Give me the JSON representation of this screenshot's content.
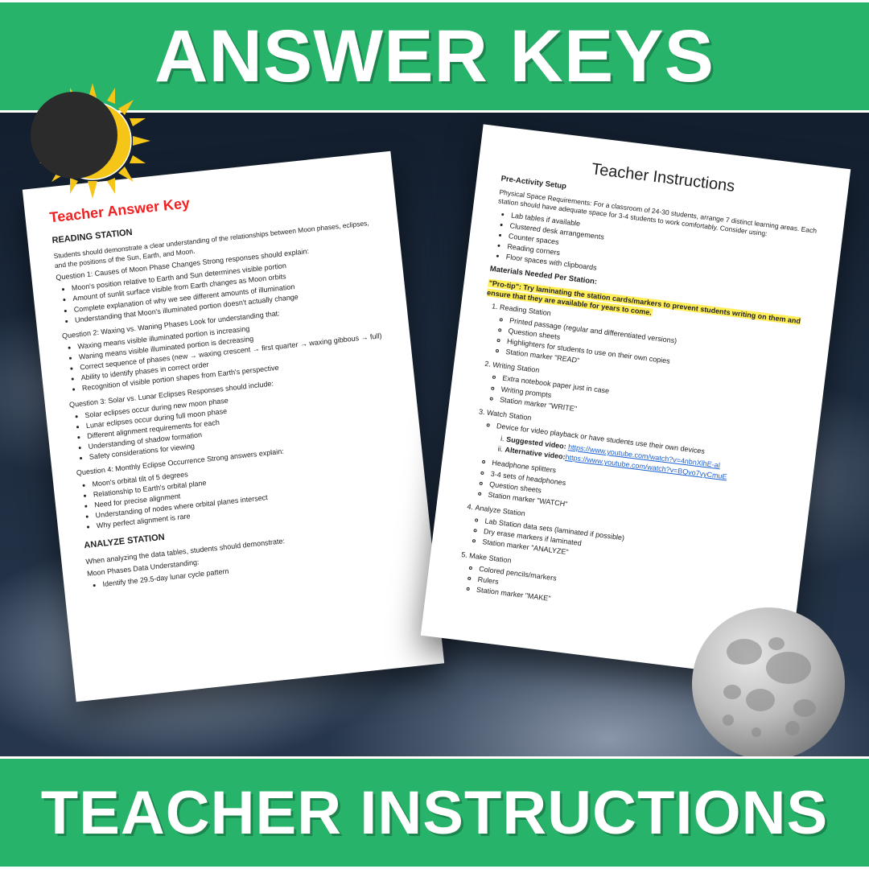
{
  "banners": {
    "top": "ANSWER KEYS",
    "bottom": "TEACHER INSTRUCTIONS"
  },
  "colors": {
    "banner_bg": "#27b36a",
    "banner_text": "#ffffff",
    "highlight": "#ffee58",
    "link": "#1a5fd0",
    "red_title": "#ee2222"
  },
  "left_page": {
    "title": "Teacher Answer Key",
    "section1_title": "READING STATION",
    "intro": "Students should demonstrate a clear understanding of the relationships between Moon phases, eclipses, and the positions of the Sun, Earth, and Moon.",
    "q1_label": "Question 1: Causes of Moon Phase Changes Strong responses should explain:",
    "q1_items": [
      "Moon's position relative to Earth and Sun determines visible portion",
      "Amount of sunlit surface visible from Earth changes as Moon orbits",
      "Complete explanation of why we see different amounts of illumination",
      "Understanding that Moon's illuminated portion doesn't actually change"
    ],
    "q2_label": "Question 2: Waxing vs. Waning Phases Look for understanding that:",
    "q2_items": [
      "Waxing means visible illuminated portion is increasing",
      "Waning means visible illuminated portion is decreasing",
      "Correct sequence of phases (new → waxing crescent → first quarter → waxing gibbous → full)",
      "Ability to identify phases in correct order",
      "Recognition of visible portion shapes from Earth's perspective"
    ],
    "q3_label": "Question 3: Solar vs. Lunar Eclipses Responses should include:",
    "q3_items": [
      "Solar eclipses occur during new moon phase",
      "Lunar eclipses occur during full moon phase",
      "Different alignment requirements for each",
      "Understanding of shadow formation",
      "Safety considerations for viewing"
    ],
    "q4_label": "Question 4: Monthly Eclipse Occurrence Strong answers explain:",
    "q4_items": [
      "Moon's orbital tilt of 5 degrees",
      "Relationship to Earth's orbital plane",
      "Need for precise alignment",
      "Understanding of nodes where orbital planes intersect",
      "Why perfect alignment is rare"
    ],
    "section2_title": "ANALYZE STATION",
    "analyze_intro": "When analyzing the data tables, students should demonstrate:",
    "analyze_sub": "Moon Phases Data Understanding:",
    "analyze_items": [
      "Identify the 29.5-day lunar cycle pattern"
    ]
  },
  "right_page": {
    "title": "Teacher Instructions",
    "pre_title": "Pre-Activity Setup",
    "space_req": "Physical Space Requirements: For a classroom of 24-30 students, arrange 7 distinct learning areas. Each station should have adequate space for 3-4 students to work comfortably. Consider using:",
    "space_items": [
      "Lab tables if available",
      "Clustered desk arrangements",
      "Counter spaces",
      "Reading corners",
      "Floor spaces with clipboards"
    ],
    "materials_title": "Materials Needed Per Station:",
    "protip": "\"Pro-tip\": Try laminating the station cards/markers to prevent students writing on them and ensure that they are available for years to come.",
    "stations": {
      "s1": {
        "name": "Reading Station",
        "items": [
          "Printed passage (regular and differentiated versions)",
          "Question sheets",
          "Highlighters for students to use on their own copies",
          "Station marker \"READ\""
        ]
      },
      "s2": {
        "name": "Writing Station",
        "items": [
          "Extra notebook paper just in case",
          "Writing prompts",
          "Station marker \"WRITE\""
        ]
      },
      "s3": {
        "name": "Watch Station",
        "lead": "Device for video playback or have students use their own devices",
        "video1_label": "Suggested video:",
        "video1_url": "https://www.youtube.com/watch?v=4nbnXlhE-aI",
        "video2_label": "Alternative video:",
        "video2_url": "https://www.youtube.com/watch?v=BQvo7vyCmuE",
        "rest": [
          "Headphone splitters",
          "3-4 sets of headphones",
          "Question sheets",
          "Station marker \"WATCH\""
        ]
      },
      "s4": {
        "name": "Analyze Station",
        "items": [
          "Lab Station data sets (laminated if possible)",
          "Dry erase markers if laminated",
          "Station marker \"ANALYZE\""
        ]
      },
      "s5": {
        "name": "Make Station",
        "items": [
          "Colored pencils/markers",
          "Rulers",
          "Station marker \"MAKE\""
        ]
      }
    }
  }
}
